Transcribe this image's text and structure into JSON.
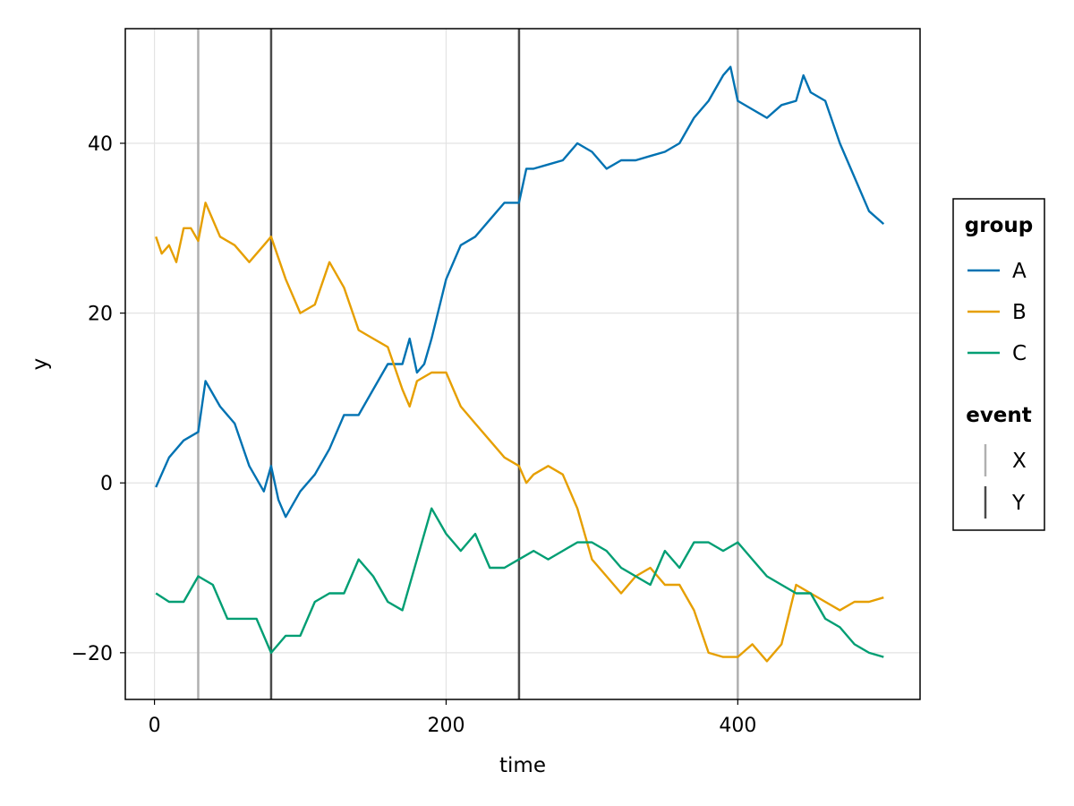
{
  "chart_data": {
    "type": "line",
    "xlabel": "time",
    "ylabel": "y",
    "xlim": [
      -20,
      525
    ],
    "ylim": [
      -25.5,
      53.5
    ],
    "x_ticks": [
      0,
      200,
      400
    ],
    "y_ticks": [
      -20,
      0,
      20,
      40
    ],
    "x_tick_labels": [
      "0",
      "200",
      "400"
    ],
    "y_tick_labels": [
      "−20",
      "0",
      "20",
      "40"
    ],
    "grid": true,
    "series": [
      {
        "name": "A",
        "color": "#0072B2",
        "x": [
          1,
          10,
          20,
          30,
          35,
          45,
          55,
          65,
          75,
          80,
          85,
          90,
          100,
          110,
          120,
          130,
          140,
          150,
          160,
          170,
          175,
          180,
          185,
          190,
          200,
          210,
          220,
          230,
          240,
          250,
          255,
          260,
          270,
          280,
          290,
          300,
          310,
          320,
          330,
          340,
          350,
          360,
          370,
          380,
          390,
          395,
          400,
          410,
          420,
          430,
          440,
          445,
          450,
          460,
          470,
          480,
          490,
          500
        ],
        "y": [
          -0.5,
          3,
          5,
          6,
          12,
          9,
          7,
          2,
          -1,
          2,
          -2,
          -4,
          -1,
          1,
          4,
          8,
          8,
          11,
          14,
          14,
          17,
          13,
          14,
          17,
          24,
          28,
          29,
          31,
          33,
          33,
          37,
          37,
          37.5,
          38,
          40,
          39,
          37,
          38,
          38,
          38.5,
          39,
          40,
          43,
          45,
          48,
          49,
          45,
          44,
          43,
          44.5,
          45,
          48,
          46,
          45,
          40,
          36,
          32,
          30.5
        ]
      },
      {
        "name": "B",
        "color": "#E69F00",
        "x": [
          1,
          5,
          10,
          15,
          20,
          25,
          30,
          35,
          45,
          55,
          65,
          75,
          80,
          90,
          100,
          110,
          120,
          130,
          140,
          150,
          160,
          170,
          175,
          180,
          190,
          200,
          210,
          220,
          230,
          240,
          250,
          255,
          260,
          270,
          280,
          290,
          300,
          310,
          320,
          330,
          340,
          350,
          360,
          370,
          380,
          390,
          400,
          410,
          420,
          430,
          440,
          450,
          460,
          470,
          480,
          490,
          500
        ],
        "y": [
          29,
          27,
          28,
          26,
          30,
          30,
          28.5,
          33,
          29,
          28,
          26,
          28,
          29,
          24,
          20,
          21,
          26,
          23,
          18,
          17,
          16,
          11,
          9,
          12,
          13,
          13,
          9,
          7,
          5,
          3,
          2,
          0,
          1,
          2,
          1,
          -3,
          -9,
          -11,
          -13,
          -11,
          -10,
          -12,
          -12,
          -15,
          -20,
          -20.5,
          -20.5,
          -19,
          -21,
          -19,
          -12,
          -13,
          -14,
          -15,
          -14,
          -14,
          -13.5
        ]
      },
      {
        "name": "C",
        "color": "#009E73",
        "x": [
          1,
          10,
          20,
          30,
          40,
          50,
          60,
          70,
          80,
          85,
          90,
          100,
          110,
          120,
          130,
          140,
          150,
          160,
          170,
          180,
          190,
          200,
          210,
          220,
          230,
          240,
          250,
          260,
          270,
          280,
          290,
          300,
          310,
          320,
          330,
          340,
          350,
          360,
          370,
          380,
          390,
          400,
          410,
          420,
          430,
          440,
          450,
          460,
          470,
          480,
          490,
          500
        ],
        "y": [
          -13,
          -14,
          -14,
          -11,
          -12,
          -16,
          -16,
          -16,
          -20,
          -19,
          -18,
          -18,
          -14,
          -13,
          -13,
          -9,
          -11,
          -14,
          -15,
          -9,
          -3,
          -6,
          -8,
          -6,
          -10,
          -10,
          -9,
          -8,
          -9,
          -8,
          -7,
          -7,
          -8,
          -10,
          -11,
          -12,
          -8,
          -10,
          -7,
          -7,
          -8,
          -7,
          -9,
          -11,
          -12,
          -13,
          -13,
          -16,
          -17,
          -19,
          -20,
          -20.5
        ]
      }
    ],
    "vlines": [
      {
        "x": 30,
        "event": "X"
      },
      {
        "x": 80,
        "event": "Y"
      },
      {
        "x": 250,
        "event": "Y"
      },
      {
        "x": 400,
        "event": "X"
      }
    ],
    "legend": {
      "placement": "right",
      "groups": [
        {
          "title": "group",
          "entries": [
            {
              "label": "A",
              "color": "#0072B2",
              "marker": "line"
            },
            {
              "label": "B",
              "color": "#E69F00",
              "marker": "line"
            },
            {
              "label": "C",
              "color": "#009E73",
              "marker": "line"
            }
          ]
        },
        {
          "title": "event",
          "entries": [
            {
              "label": "X",
              "color": "#b0b0b0",
              "marker": "vline"
            },
            {
              "label": "Y",
              "color": "#4a4a4a",
              "marker": "vline"
            }
          ]
        }
      ]
    }
  }
}
